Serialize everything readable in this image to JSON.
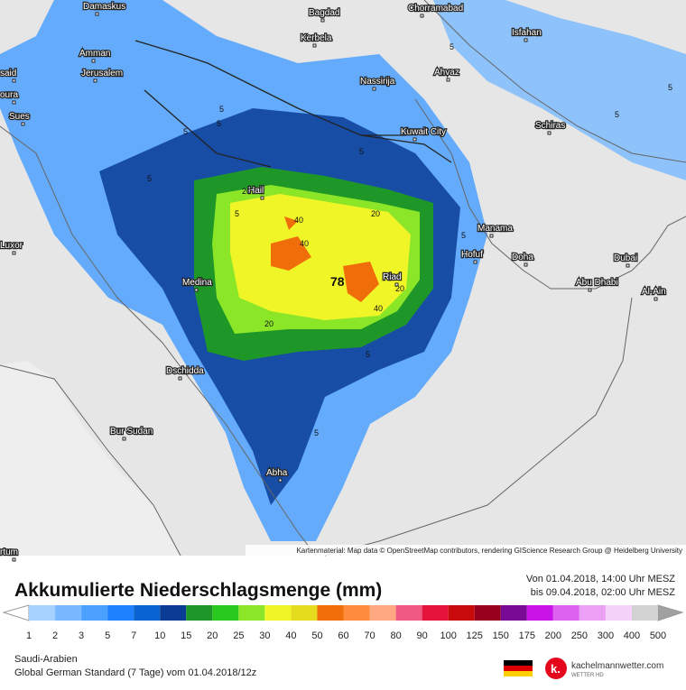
{
  "map": {
    "cities": [
      "Damaskus",
      "Bagdad",
      "Chorramabad",
      "Kerbela",
      "Isfahan",
      "Amman",
      "Jerusalem",
      "Ahvaz",
      "Nassirija",
      "said",
      "oura",
      "Sues",
      "Schiras",
      "Kuwait City",
      "Hail",
      "Manama",
      "Hofuf",
      "Doha",
      "Luxor",
      "Dubai",
      "Medina",
      "Riad",
      "Abu Dhabi",
      "Al-Ain",
      "Dschidda",
      "Bur Sudan",
      "Abha",
      "rtum"
    ],
    "contour_labels": [
      5,
      5,
      5,
      5,
      5,
      5,
      5,
      5,
      5,
      5,
      5,
      5,
      20,
      20,
      20,
      20,
      40,
      40,
      40,
      78
    ],
    "attribution": "Kartenmaterial: Map data © OpenStreetMap contributors, rendering GIScience Research Group @ Heidelberg University"
  },
  "legend": {
    "title": "Akkumulierte Niederschlagsmenge (mm)",
    "period": [
      "Von 01.04.2018, 14:00 Uhr MESZ",
      "bis 09.04.2018, 02:00 Uhr MESZ"
    ],
    "scale": [
      1,
      2,
      3,
      5,
      7,
      10,
      15,
      20,
      25,
      30,
      40,
      50,
      60,
      70,
      80,
      90,
      100,
      125,
      150,
      175,
      200,
      250,
      300,
      400,
      500
    ],
    "colors": [
      "#a6d2ff",
      "#78b9ff",
      "#4ca0ff",
      "#1e82ff",
      "#0a64d2",
      "#0a3c96",
      "#1e9628",
      "#28c81e",
      "#8ce628",
      "#f0f528",
      "#e6dc1e",
      "#f06e0a",
      "#ff8c3c",
      "#ffa882",
      "#f05a82",
      "#e6143c",
      "#c80a0a",
      "#96001e",
      "#780a96",
      "#c814e6",
      "#dc64f0",
      "#eba0f5",
      "#f5d2fa",
      "#d2d2d2"
    ]
  },
  "footer": {
    "region": "Saudi-Arabien",
    "model": "Global German Standard (7 Tage) vom 01.04.2018/12z",
    "brand": "kachelmannwetter.com",
    "brand_sub": "WETTER HD"
  }
}
